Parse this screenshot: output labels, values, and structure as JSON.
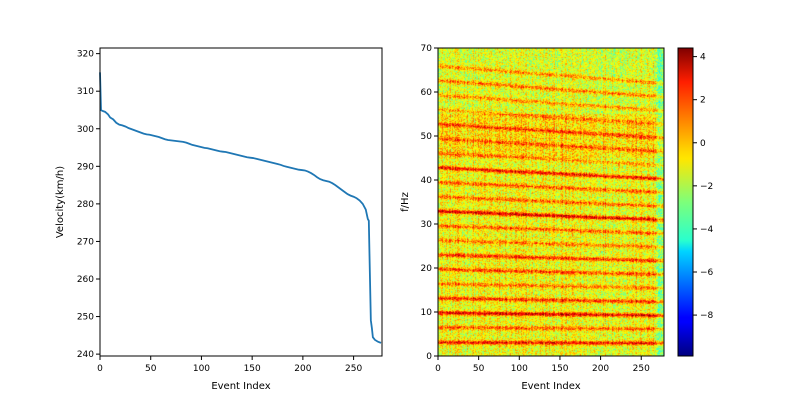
{
  "chart_data": [
    {
      "type": "line",
      "xlabel": "Event Index",
      "ylabel": "Velocity(km/h)",
      "xlim": [
        0,
        278
      ],
      "ylim": [
        239.5,
        321.5
      ],
      "xticks": [
        0,
        50,
        100,
        150,
        200,
        250
      ],
      "yticks": [
        240,
        250,
        260,
        270,
        280,
        290,
        300,
        310,
        320
      ],
      "color": "#1f77b4",
      "series": [
        {
          "x": [
            0,
            1,
            2,
            5,
            8,
            10,
            13,
            16,
            19,
            22,
            25,
            28,
            31,
            34,
            37,
            40,
            43,
            46,
            49,
            52,
            55,
            58,
            61,
            64,
            67,
            70,
            73,
            76,
            79,
            82,
            85,
            88,
            91,
            94,
            97,
            100,
            103,
            106,
            109,
            112,
            115,
            118,
            121,
            124,
            127,
            130,
            133,
            136,
            139,
            142,
            145,
            148,
            151,
            154,
            157,
            160,
            163,
            166,
            169,
            172,
            175,
            178,
            181,
            184,
            187,
            190,
            193,
            196,
            199,
            202,
            205,
            208,
            211,
            214,
            217,
            220,
            223,
            226,
            229,
            232,
            235,
            238,
            241,
            244,
            247,
            250,
            253,
            256,
            259,
            262,
            264,
            265,
            266,
            267,
            268,
            269,
            271,
            274,
            277
          ],
          "y": [
            315,
            305,
            304.8,
            304.5,
            303.8,
            303,
            302.5,
            301.6,
            301.1,
            300.9,
            300.6,
            300.2,
            299.9,
            299.6,
            299.3,
            299.0,
            298.7,
            298.5,
            298.4,
            298.2,
            298.0,
            297.8,
            297.5,
            297.2,
            297.0,
            296.9,
            296.8,
            296.7,
            296.6,
            296.5,
            296.3,
            296.0,
            295.7,
            295.5,
            295.3,
            295.1,
            294.9,
            294.8,
            294.6,
            294.4,
            294.2,
            294.0,
            293.9,
            293.8,
            293.6,
            293.4,
            293.2,
            293.0,
            292.8,
            292.6,
            292.4,
            292.3,
            292.2,
            292.0,
            291.8,
            291.6,
            291.4,
            291.2,
            291.0,
            290.8,
            290.6,
            290.4,
            290.1,
            289.9,
            289.7,
            289.5,
            289.3,
            289.1,
            289.0,
            288.9,
            288.6,
            288.2,
            287.7,
            287.1,
            286.6,
            286.3,
            286.1,
            285.9,
            285.5,
            285.0,
            284.4,
            283.8,
            283.2,
            282.6,
            282.2,
            281.9,
            281.5,
            280.9,
            280.0,
            278.5,
            276.0,
            275.5,
            262.0,
            249.0,
            247.0,
            244.5,
            243.8,
            243.3,
            243.0
          ]
        }
      ]
    },
    {
      "type": "heatmap",
      "xlabel": "Event Index",
      "ylabel": "f/Hz",
      "xlim": [
        0,
        278
      ],
      "ylim": [
        0,
        70
      ],
      "xticks": [
        0,
        50,
        100,
        150,
        200,
        250
      ],
      "yticks": [
        0,
        10,
        20,
        30,
        40,
        50,
        60,
        70
      ],
      "colormap": "jet",
      "colorbar": {
        "range": [
          -9.9,
          4.4
        ],
        "ticks": [
          4,
          2,
          0,
          -2,
          -4,
          -6,
          -8
        ],
        "tick_labels": [
          "4",
          "2",
          "0",
          "−2",
          "−4",
          "−6",
          "−8"
        ]
      },
      "harmonic_bands_hz": [
        3.2,
        6.6,
        9.9,
        13.2,
        16.5,
        19.8,
        23.1,
        26.4,
        29.7,
        33.0,
        36.3,
        39.6,
        42.9,
        46.2,
        49.5,
        52.8,
        56.1,
        59.4,
        62.7,
        66.0
      ],
      "band_intensity": [
        0.9,
        0.6,
        1.0,
        0.8,
        0.5,
        0.7,
        0.8,
        0.5,
        0.6,
        1.0,
        0.6,
        0.6,
        0.9,
        0.4,
        0.5,
        0.6,
        0.4,
        0.5,
        0.6,
        0.5
      ],
      "background_level": -1.2
    }
  ]
}
